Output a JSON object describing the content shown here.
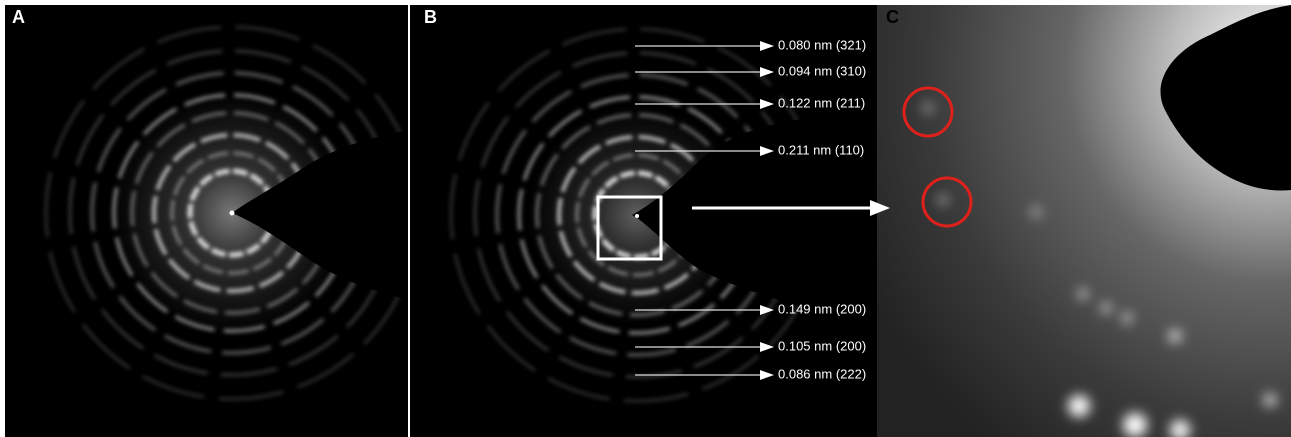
{
  "panels": [
    {
      "label": "A"
    },
    {
      "label": "B",
      "annotations": [
        "0.080 nm (321)",
        "0.094 nm (310)",
        "0.122 nm (211)",
        "0.211 nm (110)",
        "0.149 nm (200)",
        "0.105 nm (200)",
        "0.086 nm (222)"
      ]
    },
    {
      "label": "C"
    }
  ]
}
